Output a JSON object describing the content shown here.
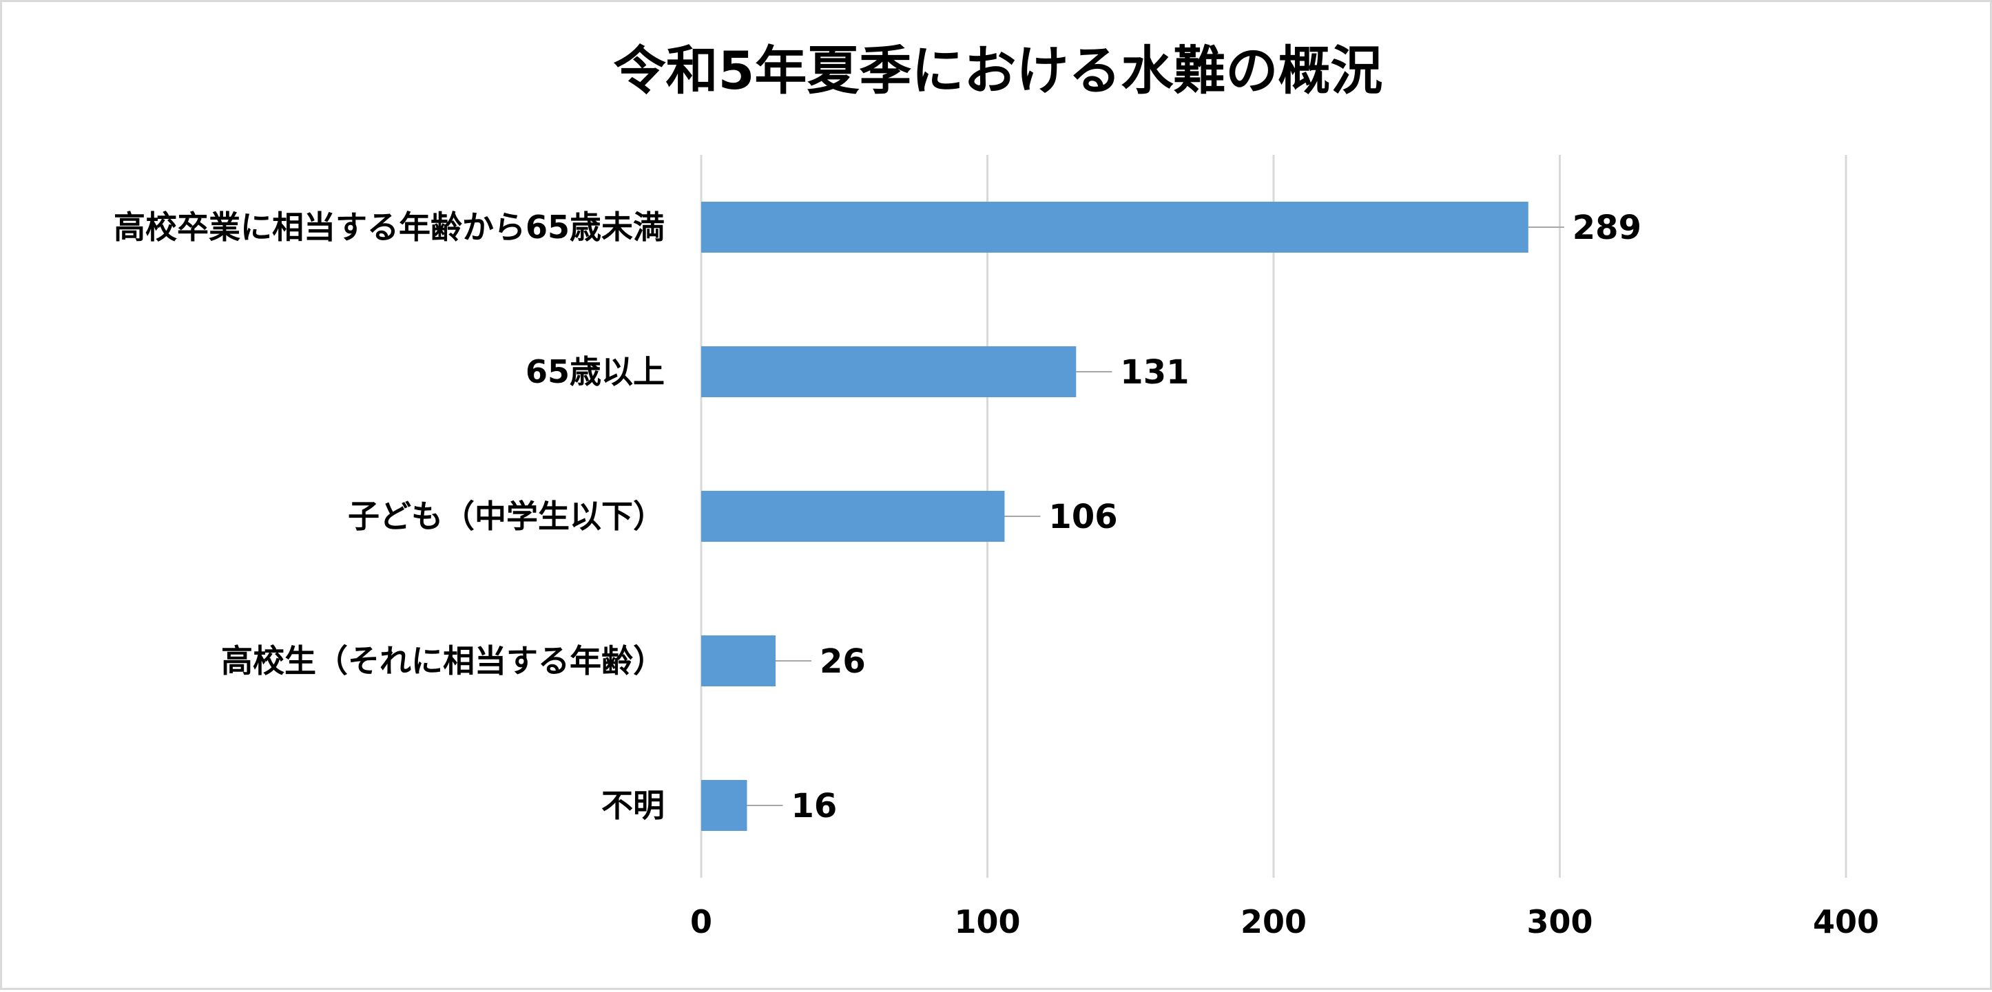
{
  "chart_data": {
    "type": "bar",
    "orientation": "horizontal",
    "title": "令和5年夏季における水難の概況",
    "categories": [
      "高校卒業に相当する年齢から65歳未満",
      "65歳以上",
      "子ども（中学生以下）",
      "高校生（それに相当する年齢）",
      "不明"
    ],
    "values": [
      289,
      131,
      106,
      26,
      16
    ],
    "xlim": [
      0,
      400
    ],
    "x_ticks": [
      0,
      100,
      200,
      300,
      400
    ],
    "x_tick_labels": [
      "0",
      "100",
      "200",
      "300",
      "400"
    ],
    "xlabel": "",
    "ylabel": "",
    "grid": true,
    "data_labels": [
      "289",
      "131",
      "106",
      "26",
      "16"
    ],
    "bar_color": "#5b9bd5",
    "grid_color": "#d9d9d9",
    "legend": "none"
  }
}
